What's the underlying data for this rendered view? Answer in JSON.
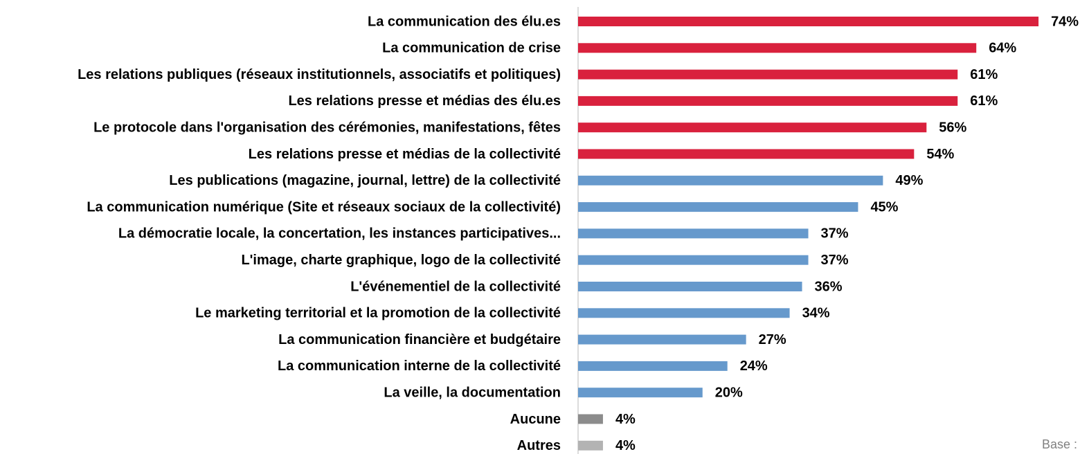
{
  "chart_data": {
    "type": "bar",
    "orientation": "horizontal",
    "categories": [
      "La communication des élu.es",
      "La communication de crise",
      "Les relations publiques (réseaux institutionnels, associatifs et politiques)",
      "Les relations presse et médias des élu.es",
      "Le protocole dans l'organisation des cérémonies, manifestations, fêtes",
      "Les relations presse et médias de la collectivité",
      "Les publications (magazine, journal, lettre) de la collectivité",
      "La communication numérique (Site et réseaux sociaux de la collectivité)",
      "La démocratie locale, la concertation, les instances participatives...",
      "L'image, charte graphique, logo de la collectivité",
      "L'événementiel de la collectivité",
      "Le marketing territorial et la promotion de la collectivité",
      "La communication financière et budgétaire",
      "La communication interne de la collectivité",
      "La veille, la documentation",
      "Aucune",
      "Autres"
    ],
    "values": [
      74,
      64,
      61,
      61,
      56,
      54,
      49,
      45,
      37,
      37,
      36,
      34,
      27,
      24,
      20,
      4,
      4
    ],
    "value_labels": [
      "74%",
      "64%",
      "61%",
      "61%",
      "56%",
      "54%",
      "49%",
      "45%",
      "37%",
      "37%",
      "36%",
      "34%",
      "27%",
      "24%",
      "20%",
      "4%",
      "4%"
    ],
    "colors": [
      "#d9213d",
      "#d9213d",
      "#d9213d",
      "#d9213d",
      "#d9213d",
      "#d9213d",
      "#6699cc",
      "#6699cc",
      "#6699cc",
      "#6699cc",
      "#6699cc",
      "#6699cc",
      "#6699cc",
      "#6699cc",
      "#6699cc",
      "#8c8c8c",
      "#b3b3b3"
    ],
    "xlim": [
      0,
      80
    ],
    "annotation": "Base :"
  }
}
